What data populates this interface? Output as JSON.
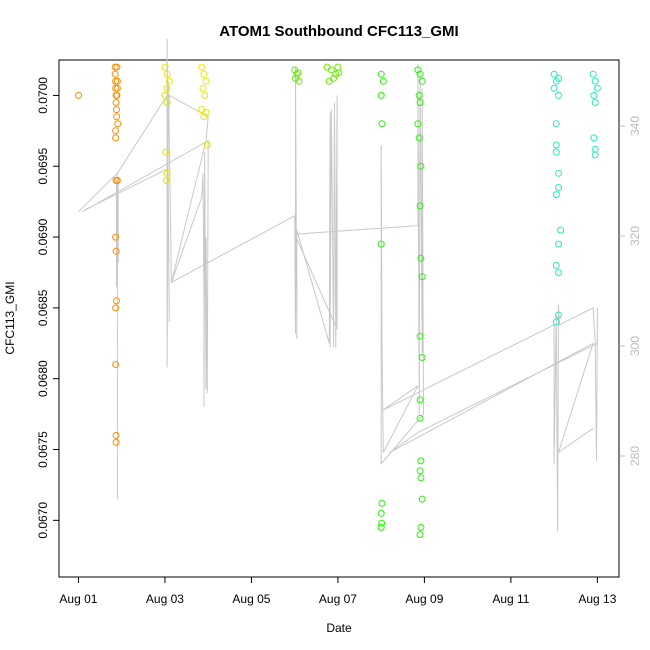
{
  "chart_data": {
    "type": "scatter",
    "title": "ATOM1 Southbound CFC113_GMI",
    "xlabel": "Date",
    "ylabel": "CFC113_GMI",
    "x_ticks": [
      "Aug 01",
      "Aug 03",
      "Aug 05",
      "Aug 07",
      "Aug 09",
      "Aug 11",
      "Aug 13"
    ],
    "x_tick_days": [
      1,
      3,
      5,
      7,
      9,
      11,
      13
    ],
    "xlim_days": [
      0.55,
      13.5
    ],
    "ylim": [
      0.0666,
      0.07025
    ],
    "y_ticks": [
      0.067,
      0.0675,
      0.068,
      0.0685,
      0.069,
      0.0695,
      0.07
    ],
    "y_tick_labels": [
      "0.0670",
      "0.0675",
      "0.0680",
      "0.0685",
      "0.0690",
      "0.0695",
      "0.0700"
    ],
    "y2_ticks": [
      280,
      300,
      320,
      340
    ],
    "y2_ticks_color": "#bbbbbb",
    "y2lim": [
      258,
      352
    ],
    "line_color": "#c8c8c8",
    "grid": false,
    "legend": "none",
    "series": [
      {
        "color": "#ff8c00",
        "points": [
          [
            1.0,
            0.07
          ],
          [
            1.85,
            0.0702
          ],
          [
            1.85,
            0.07015
          ],
          [
            1.86,
            0.0701
          ],
          [
            1.86,
            0.07005
          ],
          [
            1.87,
            0.07
          ],
          [
            1.87,
            0.06995
          ],
          [
            1.88,
            0.0699
          ],
          [
            1.88,
            0.06985
          ],
          [
            1.9,
            0.07005
          ],
          [
            1.9,
            0.0701
          ],
          [
            1.91,
            0.0698
          ],
          [
            1.86,
            0.06975
          ],
          [
            1.86,
            0.0697
          ],
          [
            1.87,
            0.0694
          ],
          [
            1.9,
            0.0694
          ],
          [
            1.86,
            0.069
          ],
          [
            1.87,
            0.0689
          ],
          [
            1.88,
            0.06855
          ],
          [
            1.86,
            0.0685
          ],
          [
            1.86,
            0.0681
          ],
          [
            1.87,
            0.0676
          ],
          [
            1.87,
            0.06755
          ],
          [
            1.89,
            0.0702
          ],
          [
            1.89,
            0.07
          ]
        ]
      },
      {
        "color": "#e8e800",
        "points": [
          [
            3.0,
            0.0702
          ],
          [
            3.05,
            0.07015
          ],
          [
            3.1,
            0.0701
          ],
          [
            3.05,
            0.07005
          ],
          [
            3.0,
            0.07
          ],
          [
            3.05,
            0.06995
          ],
          [
            3.02,
            0.0696
          ],
          [
            3.05,
            0.06945
          ],
          [
            3.03,
            0.0694
          ],
          [
            3.85,
            0.0702
          ],
          [
            3.9,
            0.07015
          ],
          [
            3.95,
            0.0701
          ],
          [
            3.88,
            0.07005
          ],
          [
            3.92,
            0.07
          ],
          [
            3.85,
            0.0699
          ],
          [
            3.9,
            0.06985
          ],
          [
            3.95,
            0.06988
          ],
          [
            3.98,
            0.06965
          ]
        ]
      },
      {
        "color": "#66ee00",
        "points": [
          [
            6.0,
            0.07018
          ],
          [
            6.05,
            0.07015
          ],
          [
            6.1,
            0.0701
          ],
          [
            6.02,
            0.07012
          ],
          [
            6.08,
            0.07016
          ],
          [
            6.75,
            0.0702
          ],
          [
            6.85,
            0.07018
          ],
          [
            6.95,
            0.07015
          ],
          [
            7.0,
            0.0702
          ],
          [
            6.8,
            0.0701
          ],
          [
            6.9,
            0.07012
          ],
          [
            7.02,
            0.07016
          ]
        ]
      },
      {
        "color": "#2eee10",
        "points": [
          [
            8.0,
            0.07015
          ],
          [
            8.05,
            0.0701
          ],
          [
            8.0,
            0.07
          ],
          [
            8.02,
            0.0698
          ],
          [
            8.0,
            0.06895
          ],
          [
            8.02,
            0.06712
          ],
          [
            8.0,
            0.06705
          ],
          [
            8.01,
            0.06698
          ],
          [
            8.0,
            0.06695
          ],
          [
            8.85,
            0.07018
          ],
          [
            8.9,
            0.07015
          ],
          [
            8.95,
            0.0701
          ],
          [
            8.88,
            0.07
          ],
          [
            8.9,
            0.06995
          ],
          [
            8.85,
            0.0698
          ],
          [
            8.88,
            0.0697
          ],
          [
            8.92,
            0.0695
          ],
          [
            8.9,
            0.06922
          ],
          [
            8.92,
            0.06885
          ],
          [
            8.95,
            0.06872
          ],
          [
            8.9,
            0.0683
          ],
          [
            8.95,
            0.06815
          ],
          [
            8.9,
            0.06785
          ],
          [
            8.9,
            0.06772
          ],
          [
            8.92,
            0.06742
          ],
          [
            8.9,
            0.06735
          ],
          [
            8.92,
            0.0673
          ],
          [
            8.95,
            0.06715
          ],
          [
            8.92,
            0.06695
          ],
          [
            8.9,
            0.0669
          ]
        ]
      },
      {
        "color": "#22eebb",
        "points": [
          [
            12.0,
            0.07015
          ],
          [
            12.05,
            0.0701
          ],
          [
            12.1,
            0.07012
          ],
          [
            12.0,
            0.07005
          ],
          [
            12.1,
            0.07
          ],
          [
            12.05,
            0.0698
          ],
          [
            12.05,
            0.06965
          ],
          [
            12.05,
            0.0696
          ],
          [
            12.1,
            0.06945
          ],
          [
            12.05,
            0.0693
          ],
          [
            12.1,
            0.06935
          ],
          [
            12.15,
            0.06905
          ],
          [
            12.1,
            0.06895
          ],
          [
            12.05,
            0.0688
          ],
          [
            12.1,
            0.06875
          ],
          [
            12.1,
            0.06845
          ],
          [
            12.05,
            0.0684
          ],
          [
            12.9,
            0.07015
          ],
          [
            12.95,
            0.0701
          ],
          [
            13.0,
            0.07005
          ],
          [
            12.92,
            0.07
          ],
          [
            12.95,
            0.06995
          ],
          [
            12.92,
            0.0697
          ],
          [
            12.95,
            0.06962
          ],
          [
            12.95,
            0.06958
          ]
        ]
      }
    ],
    "line_path": [
      [
        1.0,
        0.06918
      ],
      [
        1.9,
        0.06945
      ],
      [
        1.9,
        0.06715
      ],
      [
        1.9,
        0.06945
      ],
      [
        1.92,
        0.06882
      ],
      [
        1.92,
        0.06938
      ],
      [
        1.88,
        0.0694
      ],
      [
        1.88,
        0.06865
      ],
      [
        1.9,
        0.06945
      ],
      [
        3.05,
        0.07
      ],
      [
        3.1,
        0.0684
      ],
      [
        3.05,
        0.0704
      ],
      [
        3.05,
        0.06808
      ],
      [
        3.08,
        0.0701
      ],
      [
        3.15,
        0.06868
      ],
      [
        3.85,
        0.06928
      ],
      [
        3.88,
        0.06945
      ],
      [
        3.9,
        0.06855
      ],
      [
        3.9,
        0.0678
      ],
      [
        3.92,
        0.0696
      ],
      [
        3.95,
        0.06792
      ],
      [
        3.95,
        0.069
      ],
      [
        3.98,
        0.0679
      ],
      [
        4.0,
        0.06968
      ],
      [
        1.1,
        0.06918
      ],
      [
        1.2,
        0.0692
      ],
      [
        3.05,
        0.06948
      ],
      [
        3.1,
        0.07
      ],
      [
        4.0,
        0.06985
      ],
      [
        3.95,
        0.06968
      ],
      [
        3.15,
        0.06868
      ],
      [
        6.0,
        0.06915
      ],
      [
        6.02,
        0.06832
      ],
      [
        6.02,
        0.0702
      ],
      [
        6.05,
        0.06828
      ],
      [
        6.05,
        0.06905
      ],
      [
        6.8,
        0.06825
      ],
      [
        6.82,
        0.06988
      ],
      [
        6.82,
        0.06822
      ],
      [
        6.85,
        0.0699
      ],
      [
        6.9,
        0.06822
      ],
      [
        6.92,
        0.06995
      ],
      [
        6.95,
        0.06822
      ],
      [
        6.98,
        0.07
      ],
      [
        6.98,
        0.06835
      ],
      [
        6.0,
        0.06902
      ],
      [
        8.85,
        0.06908
      ],
      [
        8.85,
        0.07022
      ],
      [
        8.88,
        0.06775
      ],
      [
        8.9,
        0.07015
      ],
      [
        8.95,
        0.06818
      ],
      [
        8.95,
        0.07005
      ],
      [
        8.98,
        0.06775
      ],
      [
        8.0,
        0.0674
      ],
      [
        8.0,
        0.06965
      ],
      [
        8.02,
        0.06825
      ],
      [
        8.05,
        0.06748
      ],
      [
        8.85,
        0.06795
      ],
      [
        8.05,
        0.06778
      ],
      [
        12.0,
        0.06838
      ],
      [
        12.0,
        0.0674
      ],
      [
        12.05,
        0.06845
      ],
      [
        12.08,
        0.06692
      ],
      [
        12.1,
        0.06852
      ],
      [
        12.12,
        0.06838
      ],
      [
        12.9,
        0.0685
      ],
      [
        12.95,
        0.06825
      ],
      [
        12.98,
        0.06742
      ],
      [
        13.0,
        0.0685
      ],
      [
        13.0,
        0.06825
      ],
      [
        8.85,
        0.06762
      ],
      [
        8.2,
        0.06748
      ],
      [
        12.9,
        0.06825
      ],
      [
        12.1,
        0.06748
      ],
      [
        12.9,
        0.06765
      ]
    ]
  }
}
